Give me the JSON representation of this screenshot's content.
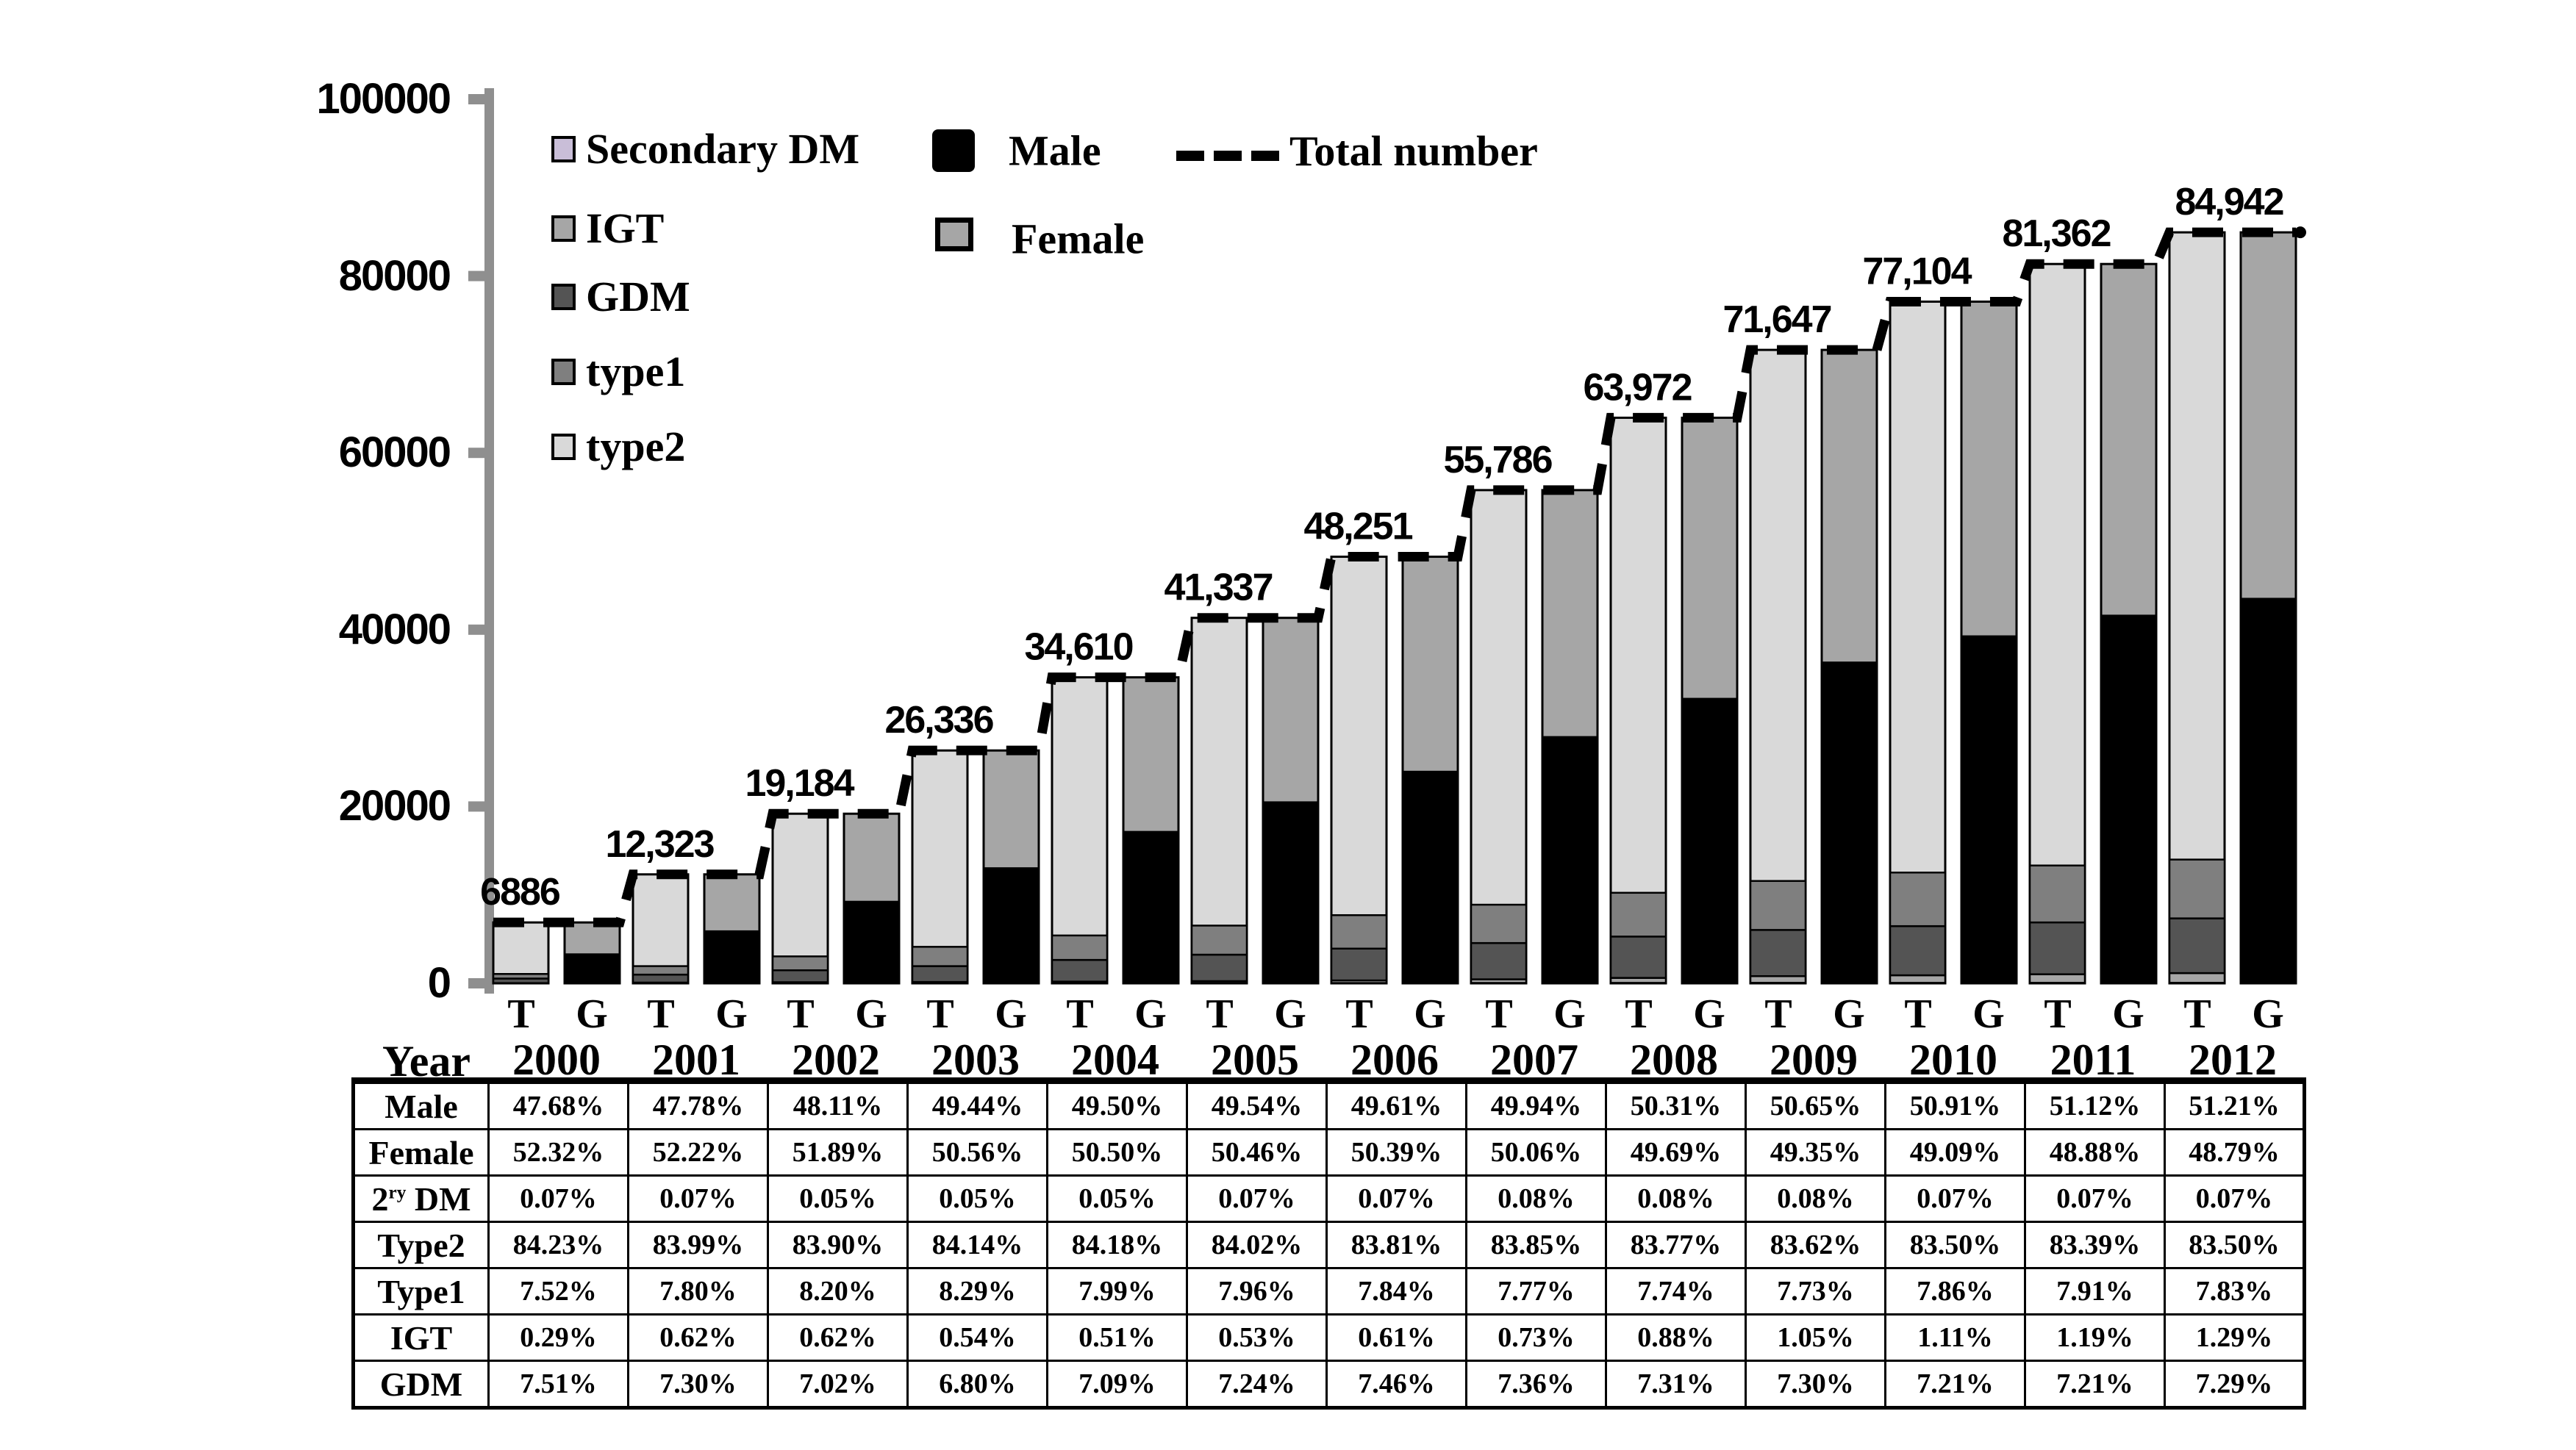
{
  "chart_data": {
    "type": "bar",
    "stacked": true,
    "note": "Two stacked bars per year: T = diabetes type composition, G = gender composition; dashed line = total number",
    "years": [
      "2000",
      "2001",
      "2002",
      "2003",
      "2004",
      "2005",
      "2006",
      "2007",
      "2008",
      "2009",
      "2010",
      "2011",
      "2012"
    ],
    "totals": [
      6886,
      12323,
      19184,
      26336,
      34610,
      41337,
      48251,
      55786,
      63972,
      71647,
      77104,
      81362,
      84942
    ],
    "total_labels": [
      "6886",
      "12,323",
      "19,184",
      "26,336",
      "34,610",
      "41,337",
      "48,251",
      "55,786",
      "63,972",
      "71,647",
      "77,104",
      "81,362",
      "84,942"
    ],
    "bar_pair_labels": [
      "T",
      "G"
    ],
    "t_series": [
      {
        "name": "Secondary DM",
        "key": "secondary-dm",
        "color": "#c9bed8",
        "pct": [
          0.07,
          0.07,
          0.05,
          0.05,
          0.05,
          0.07,
          0.07,
          0.08,
          0.08,
          0.08,
          0.07,
          0.07,
          0.07
        ]
      },
      {
        "name": "IGT",
        "key": "igt",
        "color": "#a6a6a6",
        "pct": [
          0.29,
          0.62,
          0.62,
          0.54,
          0.51,
          0.53,
          0.61,
          0.73,
          0.88,
          1.05,
          1.11,
          1.19,
          1.29
        ]
      },
      {
        "name": "GDM",
        "key": "gdm",
        "color": "#545454",
        "pct": [
          7.51,
          7.3,
          7.02,
          6.8,
          7.09,
          7.24,
          7.46,
          7.36,
          7.31,
          7.3,
          7.21,
          7.21,
          7.29
        ]
      },
      {
        "name": "type1",
        "key": "type1",
        "color": "#7f7f7f",
        "pct": [
          7.52,
          7.8,
          8.2,
          8.29,
          7.99,
          7.96,
          7.84,
          7.77,
          7.74,
          7.73,
          7.86,
          7.91,
          7.83
        ]
      },
      {
        "name": "type2",
        "key": "type2",
        "color": "#d9d9d9",
        "pct": [
          84.23,
          83.99,
          83.9,
          84.14,
          84.18,
          84.02,
          83.81,
          83.85,
          83.77,
          83.62,
          83.5,
          83.39,
          83.5
        ]
      }
    ],
    "g_series": [
      {
        "name": "Male",
        "key": "male",
        "color": "#000000",
        "pct": [
          47.68,
          47.78,
          48.11,
          49.44,
          49.5,
          49.54,
          49.61,
          49.94,
          50.31,
          50.65,
          50.91,
          51.12,
          51.21
        ]
      },
      {
        "name": "Female",
        "key": "female",
        "color": "#a6a6a6",
        "pct": [
          52.32,
          52.22,
          51.89,
          50.56,
          50.5,
          50.46,
          50.39,
          50.06,
          49.69,
          49.35,
          49.09,
          48.88,
          48.79
        ]
      }
    ],
    "line_series": {
      "name": "Total number",
      "style": "dashed",
      "color": "#000000"
    },
    "yaxis": {
      "min": 0,
      "max": 100000,
      "tick_step": 20000,
      "tick_values": [
        0,
        20000,
        40000,
        60000,
        80000,
        100000
      ],
      "tick_labels_desc": [
        "100000",
        "80000",
        "60000",
        "40000",
        "20000",
        "0"
      ]
    },
    "axis_color": "#8f8f8f",
    "xlabel": "Year",
    "legend_position": "top-left-inside"
  },
  "legend": {
    "items": [
      {
        "label": "Secondary DM",
        "color": "#c9bed8"
      },
      {
        "label": "IGT",
        "color": "#a6a6a6"
      },
      {
        "label": "GDM",
        "color": "#545454"
      },
      {
        "label": "type1",
        "color": "#7f7f7f"
      },
      {
        "label": "type2",
        "color": "#d9d9d9"
      },
      {
        "label": "Male",
        "color": "#000000"
      },
      {
        "label": "Female",
        "color": "#a6a6a6"
      },
      {
        "label": "Total number",
        "color": "#000000",
        "style": "dashed"
      }
    ]
  },
  "labels": {
    "year_title": "Year"
  },
  "table": {
    "rows": [
      {
        "key": "male",
        "label_parts": [
          [
            "t",
            "Male"
          ]
        ],
        "values": [
          "47.68%",
          "47.78%",
          "48.11%",
          "49.44%",
          "49.50%",
          "49.54%",
          "49.61%",
          "49.94%",
          "50.31%",
          "50.65%",
          "50.91%",
          "51.12%",
          "51.21%"
        ]
      },
      {
        "key": "female",
        "label_parts": [
          [
            "t",
            "Female"
          ]
        ],
        "values": [
          "52.32%",
          "52.22%",
          "51.89%",
          "50.56%",
          "50.50%",
          "50.46%",
          "50.39%",
          "50.06%",
          "49.69%",
          "49.35%",
          "49.09%",
          "48.88%",
          "48.79%"
        ]
      },
      {
        "key": "secondary-dm",
        "label_parts": [
          [
            "t",
            "2"
          ],
          [
            "sup",
            "ry"
          ],
          [
            "t",
            " DM"
          ]
        ],
        "values": [
          "0.07%",
          "0.07%",
          "0.05%",
          "0.05%",
          "0.05%",
          "0.07%",
          "0.07%",
          "0.08%",
          "0.08%",
          "0.08%",
          "0.07%",
          "0.07%",
          "0.07%"
        ]
      },
      {
        "key": "type2",
        "label_parts": [
          [
            "t",
            "Type2"
          ]
        ],
        "values": [
          "84.23%",
          "83.99%",
          "83.90%",
          "84.14%",
          "84.18%",
          "84.02%",
          "83.81%",
          "83.85%",
          "83.77%",
          "83.62%",
          "83.50%",
          "83.39%",
          "83.50%"
        ]
      },
      {
        "key": "type1",
        "label_parts": [
          [
            "t",
            "Type1"
          ]
        ],
        "values": [
          "7.52%",
          "7.80%",
          "8.20%",
          "8.29%",
          "7.99%",
          "7.96%",
          "7.84%",
          "7.77%",
          "7.74%",
          "7.73%",
          "7.86%",
          "7.91%",
          "7.83%"
        ]
      },
      {
        "key": "igt",
        "label_parts": [
          [
            "t",
            "IGT"
          ]
        ],
        "values": [
          "0.29%",
          "0.62%",
          "0.62%",
          "0.54%",
          "0.51%",
          "0.53%",
          "0.61%",
          "0.73%",
          "0.88%",
          "1.05%",
          "1.11%",
          "1.19%",
          "1.29%"
        ]
      },
      {
        "key": "gdm",
        "label_parts": [
          [
            "t",
            "GDM"
          ]
        ],
        "values": [
          "7.51%",
          "7.30%",
          "7.02%",
          "6.80%",
          "7.09%",
          "7.24%",
          "7.46%",
          "7.36%",
          "7.31%",
          "7.30%",
          "7.21%",
          "7.21%",
          "7.29%"
        ]
      }
    ]
  }
}
